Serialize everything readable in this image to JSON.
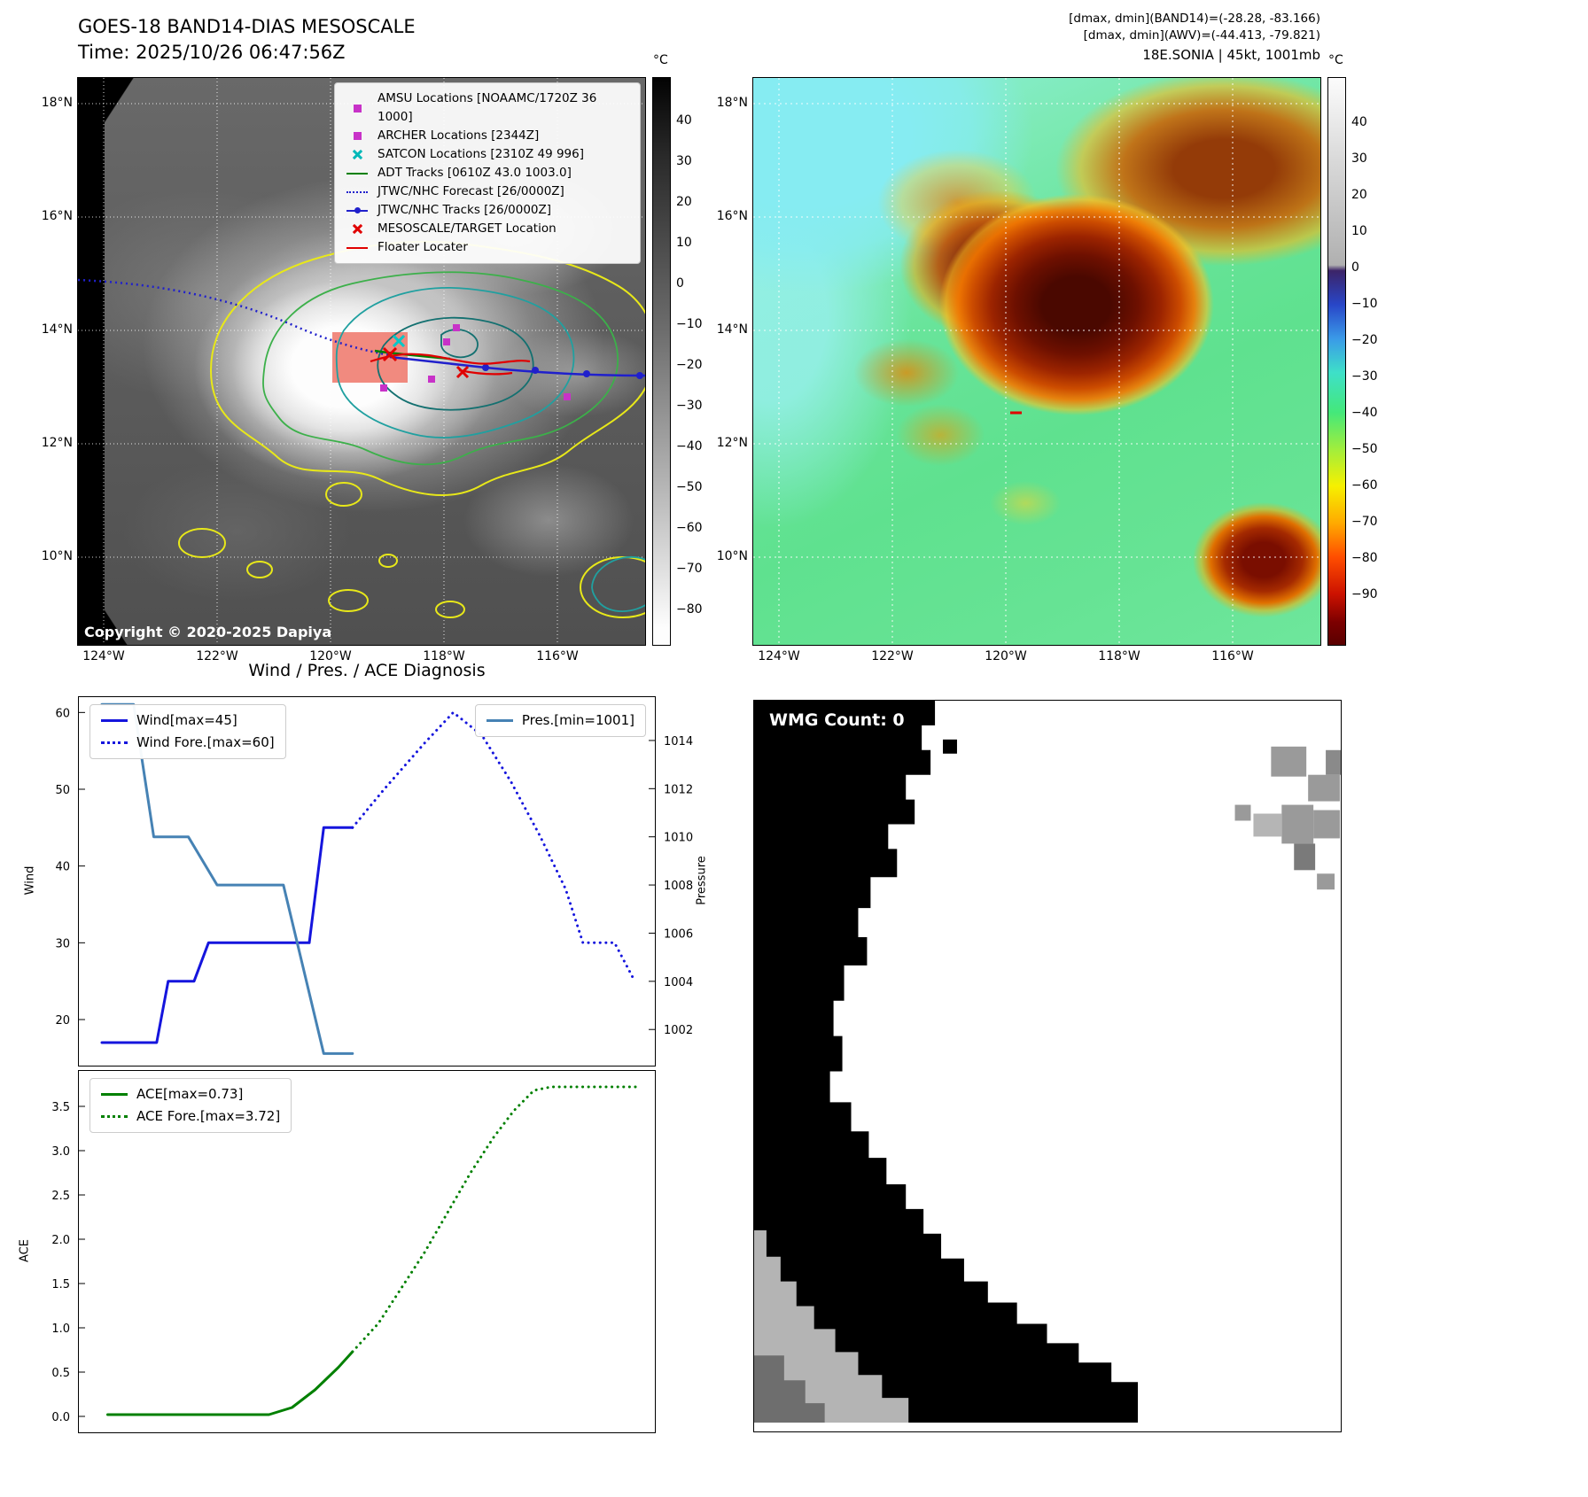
{
  "left_panel": {
    "title": "GOES-18 BAND14-DIAS MESOSCALE",
    "subtitle": "Time: 2025/10/26 06:47:56Z",
    "copyright": "Copyright © 2020-2025 Dapiya",
    "colorbar": {
      "unit": "°C",
      "ticks": [
        "40",
        "30",
        "20",
        "10",
        "0",
        "−10",
        "−20",
        "−30",
        "−40",
        "−50",
        "−60",
        "−70",
        "−80"
      ]
    },
    "legend": [
      {
        "symbol": "magenta-square-icon",
        "label": "AMSU Locations [NOAAMC/1720Z 36 1000]"
      },
      {
        "symbol": "magenta-square-icon",
        "label": "ARCHER Locations [2344Z]"
      },
      {
        "symbol": "cyan-x-icon",
        "label": "SATCON Locations [2310Z 49 996]"
      },
      {
        "symbol": "green-line-icon",
        "label": "ADT Tracks [0610Z 43.0 1003.0]"
      },
      {
        "symbol": "blue-dotted-line-icon",
        "label": "JTWC/NHC Forecast [26/0000Z]"
      },
      {
        "symbol": "blue-line-dot-icon",
        "label": "JTWC/NHC Tracks [26/0000Z]"
      },
      {
        "symbol": "red-x-icon",
        "label": "MESOSCALE/TARGET Location"
      },
      {
        "symbol": "red-line-icon",
        "label": "Floater Locater"
      }
    ],
    "lat_ticks": [
      "18°N",
      "16°N",
      "14°N",
      "12°N",
      "10°N"
    ],
    "lon_ticks": [
      "124°W",
      "122°W",
      "120°W",
      "118°W",
      "116°W"
    ]
  },
  "right_panel": {
    "header_line1": "[dmax, dmin](BAND14)=(-28.28, -83.166)",
    "header_line2": "[dmax, dmin](AWV)=(-44.413, -79.821)",
    "header_line3": "18E.SONIA | 45kt, 1001mb",
    "colorbar": {
      "unit": "°C",
      "ticks": [
        "40",
        "30",
        "20",
        "10",
        "0",
        "−10",
        "−20",
        "−30",
        "−40",
        "−50",
        "−60",
        "−70",
        "−80",
        "−90"
      ]
    },
    "lat_ticks": [
      "18°N",
      "16°N",
      "14°N",
      "12°N",
      "10°N"
    ],
    "lon_ticks": [
      "124°W",
      "122°W",
      "120°W",
      "118°W",
      "116°W"
    ]
  },
  "diagnosis_title": "Wind / Pres. / ACE Diagnosis",
  "wmg": {
    "count_label": "WMG Count: 0"
  },
  "chart_data": [
    {
      "type": "line",
      "panel": "wind_pressure",
      "title": "Wind / Pres. / ACE Diagnosis",
      "ylabel": "Wind",
      "y2label": "Pressure",
      "ylim": [
        14,
        62
      ],
      "y2lim": [
        1000.5,
        1015.8
      ],
      "yticks": [
        20,
        30,
        40,
        50,
        60
      ],
      "ytick_labels": [
        "20",
        "30",
        "40",
        "50",
        "60"
      ],
      "y2ticks": [
        1002,
        1004,
        1006,
        1008,
        1010,
        1012,
        1014
      ],
      "y2tick_labels": [
        "1002",
        "1004",
        "1006",
        "1008",
        "1010",
        "1012",
        "1014"
      ],
      "xlim": [
        0,
        1
      ],
      "x_note": "time axis, tick labels not shown in figure",
      "grid": false,
      "legend_position": "upper-left and upper-right",
      "series": [
        {
          "name": "Wind",
          "legend": "Wind[max=45]",
          "axis": "left",
          "style": "solid",
          "color": "#1515dd",
          "points": [
            [
              0.04,
              17
            ],
            [
              0.135,
              17
            ],
            [
              0.155,
              25
            ],
            [
              0.2,
              25
            ],
            [
              0.225,
              30
            ],
            [
              0.4,
              30
            ],
            [
              0.425,
              45
            ],
            [
              0.475,
              45
            ]
          ]
        },
        {
          "name": "Wind Forecast",
          "legend": "Wind Fore.[max=60]",
          "axis": "left",
          "style": "dotted",
          "color": "#1515dd",
          "points": [
            [
              0.475,
              45
            ],
            [
              0.53,
              50
            ],
            [
              0.6,
              56
            ],
            [
              0.65,
              60
            ],
            [
              0.7,
              57
            ],
            [
              0.75,
              51
            ],
            [
              0.8,
              44
            ],
            [
              0.845,
              37
            ],
            [
              0.875,
              30
            ],
            [
              0.93,
              30
            ],
            [
              0.965,
              25
            ]
          ]
        },
        {
          "name": "Pressure",
          "legend": "Pres.[min=1001]",
          "axis": "right",
          "style": "solid",
          "color": "#4682b4",
          "points": [
            [
              0.04,
              1015.5
            ],
            [
              0.095,
              1015.5
            ],
            [
              0.13,
              1010
            ],
            [
              0.19,
              1010
            ],
            [
              0.24,
              1008
            ],
            [
              0.355,
              1008
            ],
            [
              0.425,
              1001
            ],
            [
              0.475,
              1001
            ]
          ]
        }
      ]
    },
    {
      "type": "line",
      "panel": "ace",
      "ylabel": "ACE",
      "ylim": [
        -0.18,
        3.9
      ],
      "yticks": [
        0,
        0.5,
        1,
        1.5,
        2,
        2.5,
        3,
        3.5
      ],
      "ytick_labels": [
        "0.0",
        "0.5",
        "1.0",
        "1.5",
        "2.0",
        "2.5",
        "3.0",
        "3.5"
      ],
      "xlim": [
        0,
        1
      ],
      "grid": false,
      "legend_position": "upper-left",
      "series": [
        {
          "name": "ACE",
          "legend": "ACE[max=0.73]",
          "axis": "left",
          "style": "solid",
          "color": "#008000",
          "points": [
            [
              0.05,
              0.02
            ],
            [
              0.33,
              0.02
            ],
            [
              0.37,
              0.1
            ],
            [
              0.41,
              0.3
            ],
            [
              0.45,
              0.55
            ],
            [
              0.475,
              0.73
            ]
          ]
        },
        {
          "name": "ACE Forecast",
          "legend": "ACE Fore.[max=3.72]",
          "axis": "left",
          "style": "dotted",
          "color": "#008000",
          "points": [
            [
              0.475,
              0.73
            ],
            [
              0.52,
              1.05
            ],
            [
              0.56,
              1.45
            ],
            [
              0.6,
              1.85
            ],
            [
              0.64,
              2.3
            ],
            [
              0.68,
              2.75
            ],
            [
              0.72,
              3.15
            ],
            [
              0.755,
              3.45
            ],
            [
              0.79,
              3.68
            ],
            [
              0.82,
              3.72
            ],
            [
              0.97,
              3.72
            ]
          ]
        }
      ]
    }
  ]
}
